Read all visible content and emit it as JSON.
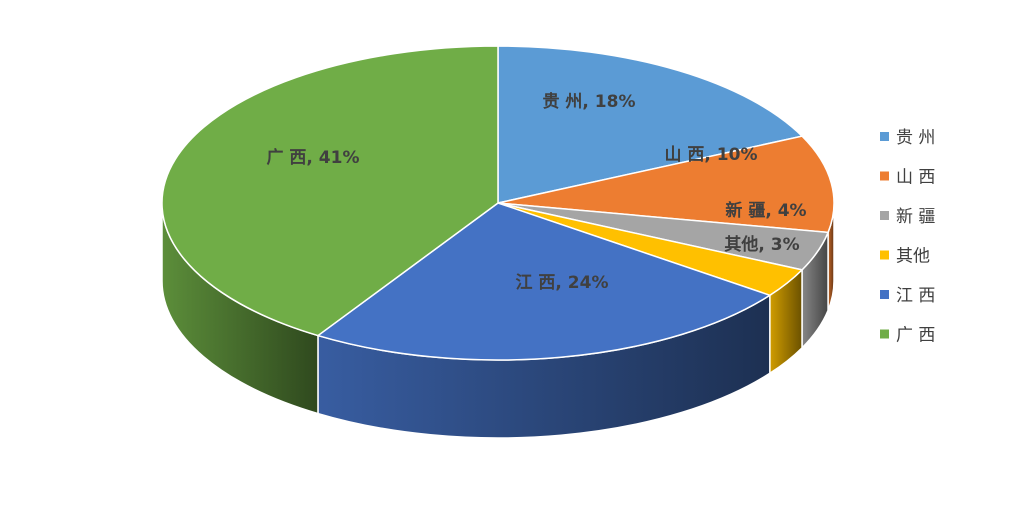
{
  "chart_data": {
    "type": "pie",
    "style": "3d",
    "legend_position": "right",
    "label_format": "{label}, {value}%",
    "slices": [
      {
        "label": "贵 州",
        "value": 18,
        "color": "#5B9BD5"
      },
      {
        "label": "山 西",
        "value": 10,
        "color": "#ED7D31"
      },
      {
        "label": "新 疆",
        "value": 4,
        "color": "#A5A5A5"
      },
      {
        "label": "其他",
        "value": 3,
        "color": "#FFC000"
      },
      {
        "label": "江 西",
        "value": 24,
        "color": "#4472C4"
      },
      {
        "label": "广 西",
        "value": 41,
        "color": "#70AD47"
      }
    ]
  }
}
